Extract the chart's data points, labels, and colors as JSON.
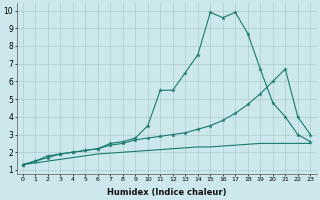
{
  "xlabel": "Humidex (Indice chaleur)",
  "background_color": "#cce8ec",
  "line_color": "#1a7a6e",
  "grid_color": "#aacccc",
  "x_values": [
    0,
    1,
    2,
    3,
    4,
    5,
    6,
    7,
    8,
    9,
    10,
    11,
    12,
    13,
    14,
    15,
    16,
    17,
    18,
    19,
    20,
    21,
    22,
    23
  ],
  "line1": [
    1.3,
    1.5,
    1.8,
    1.9,
    2.0,
    2.1,
    2.2,
    2.5,
    2.6,
    2.8,
    3.5,
    5.5,
    5.5,
    6.5,
    7.5,
    9.9,
    9.6,
    9.9,
    8.7,
    6.7,
    4.8,
    4.0,
    3.0,
    2.6
  ],
  "line2": [
    1.3,
    1.5,
    1.7,
    1.9,
    2.0,
    2.1,
    2.2,
    2.4,
    2.5,
    2.7,
    2.8,
    2.9,
    3.0,
    3.1,
    3.3,
    3.5,
    3.8,
    4.2,
    4.7,
    5.3,
    6.0,
    6.7,
    4.0,
    3.0
  ],
  "line3": [
    1.3,
    1.4,
    1.5,
    1.6,
    1.7,
    1.8,
    1.9,
    1.95,
    2.0,
    2.05,
    2.1,
    2.15,
    2.2,
    2.25,
    2.3,
    2.3,
    2.35,
    2.4,
    2.45,
    2.5,
    2.5,
    2.5,
    2.5,
    2.5
  ],
  "xlim": [
    -0.5,
    23.5
  ],
  "ylim": [
    0.8,
    10.4
  ],
  "yticks": [
    1,
    2,
    3,
    4,
    5,
    6,
    7,
    8,
    9,
    10
  ],
  "xtick_fontsize": 4.5,
  "ytick_fontsize": 5.5,
  "xlabel_fontsize": 6
}
